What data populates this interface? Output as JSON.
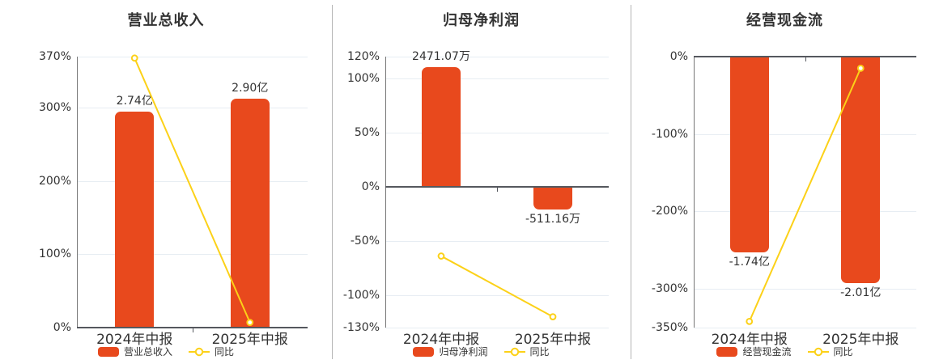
{
  "colors": {
    "bar": "#e8491d",
    "line": "#fcd118",
    "grid": "#e7edf3",
    "axis_dark": "#55585e",
    "spine": "#777777",
    "text": "#333333",
    "divider": "#b5b5b5",
    "background": "#ffffff"
  },
  "chart_data": [
    {
      "type": "bar",
      "title": "营业总收入",
      "categories": [
        "2024年中报",
        "2025年中报"
      ],
      "bar_series": {
        "name": "营业总收入",
        "value_labels": [
          "2.74亿",
          "2.90亿"
        ],
        "plot_values_pct": [
          295,
          313
        ]
      },
      "line_series": {
        "name": "同比",
        "values_pct": [
          368,
          7
        ]
      },
      "ylim": [
        0,
        370
      ],
      "yticks": [
        370,
        300,
        200,
        100,
        0
      ],
      "ytick_suffix": "%",
      "grid": true,
      "legend": [
        "营业总收入",
        "同比"
      ],
      "legend_position": "bottom"
    },
    {
      "type": "bar",
      "title": "归母净利润",
      "categories": [
        "2024年中报",
        "2025年中报"
      ],
      "bar_series": {
        "name": "归母净利润",
        "value_labels": [
          "2471.07万",
          "-511.16万"
        ],
        "plot_values_pct": [
          110,
          -20
        ]
      },
      "line_series": {
        "name": "同比",
        "values_pct": [
          -64,
          -120
        ]
      },
      "ylim": [
        -130,
        120
      ],
      "yticks": [
        120,
        100,
        50,
        0,
        -50,
        -100,
        -130
      ],
      "ytick_suffix": "%",
      "grid": true,
      "legend": [
        "归母净利润",
        "同比"
      ],
      "legend_position": "bottom"
    },
    {
      "type": "bar",
      "title": "经营现金流",
      "categories": [
        "2024年中报",
        "2025年中报"
      ],
      "bar_series": {
        "name": "经营现金流",
        "value_labels": [
          "-1.74亿",
          "-2.01亿"
        ],
        "plot_values_pct": [
          -252,
          -291
        ]
      },
      "line_series": {
        "name": "同比",
        "values_pct": [
          -342,
          -15
        ]
      },
      "ylim": [
        -350,
        0
      ],
      "yticks": [
        0,
        -100,
        -200,
        -300,
        -350
      ],
      "ytick_suffix": "%",
      "grid": true,
      "legend": [
        "经营现金流",
        "同比"
      ],
      "legend_position": "bottom"
    }
  ]
}
